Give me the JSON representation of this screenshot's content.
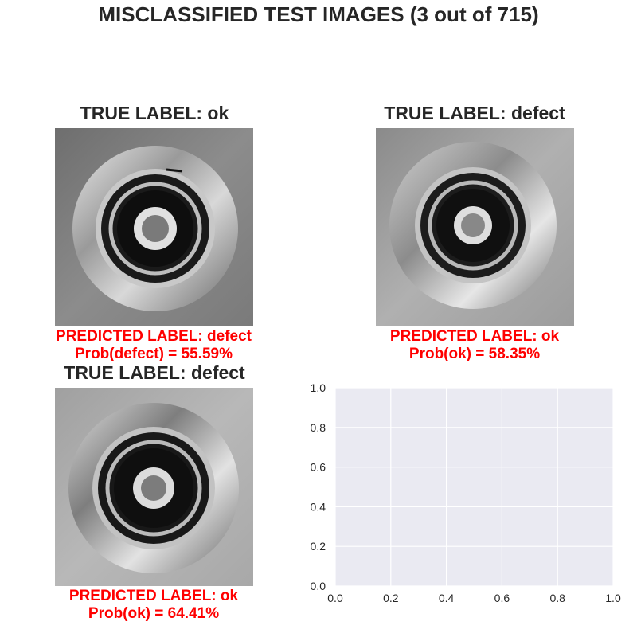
{
  "figure": {
    "title": "MISCLASSIFIED TEST IMAGES (3 out of 715)"
  },
  "panels": [
    {
      "true_label": "TRUE LABEL: ok",
      "predicted_label": "PREDICTED LABEL: defect",
      "probability": "Prob(defect) = 55.59%"
    },
    {
      "true_label": "TRUE LABEL: defect",
      "predicted_label": "PREDICTED LABEL: ok",
      "probability": "Prob(ok) = 58.35%"
    },
    {
      "true_label": "TRUE LABEL: defect",
      "predicted_label": "PREDICTED LABEL: ok",
      "probability": "Prob(ok) = 64.41%"
    }
  ],
  "colors": {
    "predicted_text": "#ff0000",
    "axes_background": "#eaeaf2",
    "grid": "#ffffff",
    "text": "#262626"
  },
  "chart_data": {
    "type": "scatter",
    "title": "",
    "xlabel": "",
    "ylabel": "",
    "xlim": [
      0.0,
      1.0
    ],
    "ylim": [
      0.0,
      1.0
    ],
    "xticks": [
      "0.0",
      "0.2",
      "0.4",
      "0.6",
      "0.8",
      "1.0"
    ],
    "yticks": [
      "0.0",
      "0.2",
      "0.4",
      "0.6",
      "0.8",
      "1.0"
    ],
    "series": [],
    "grid": true,
    "style": "seaborn-darkgrid"
  }
}
